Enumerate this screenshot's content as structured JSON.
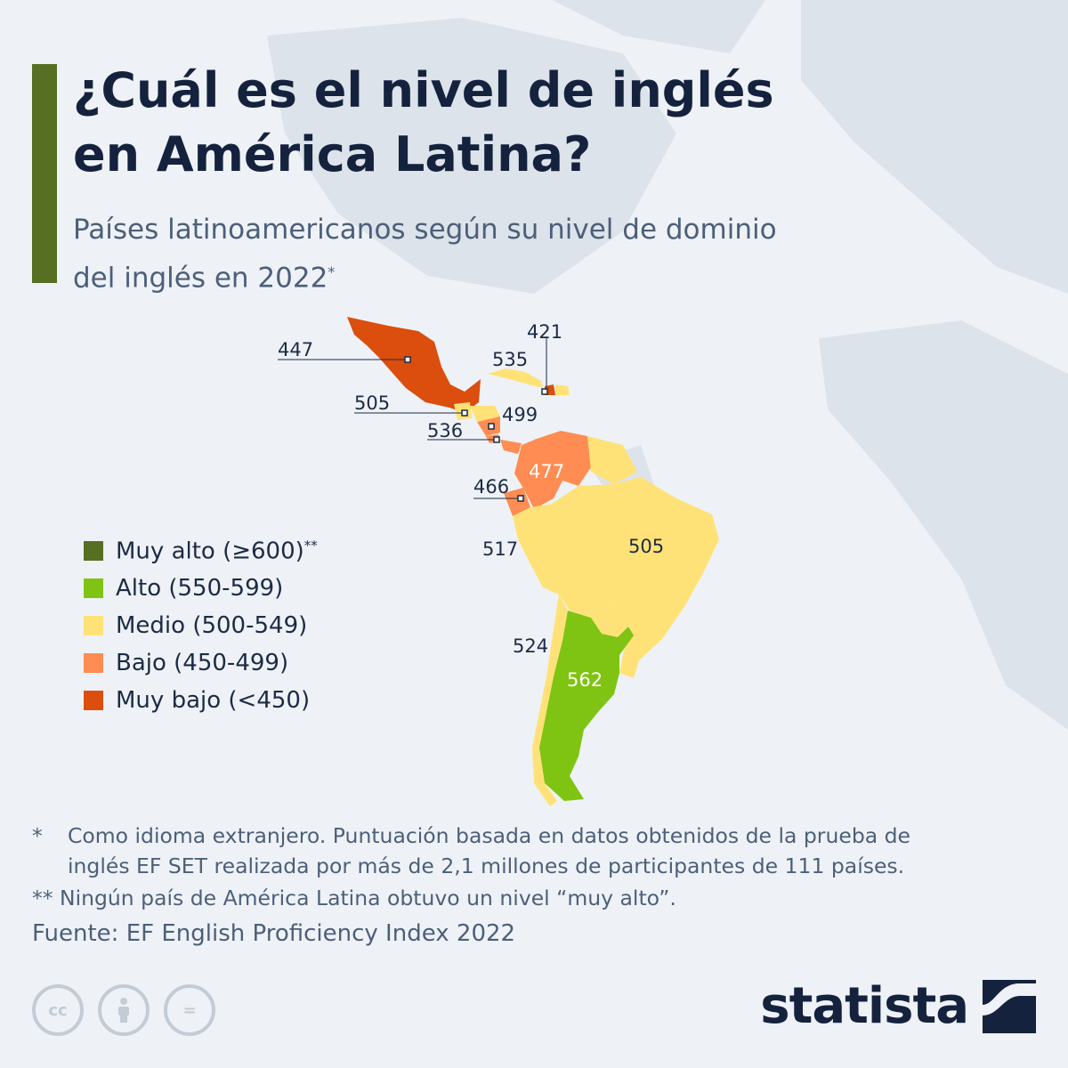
{
  "title": "¿Cuál es el nivel de inglés\nen América Latina?",
  "subtitle": "Países latinoamericanos según su nivel de dominio\ndel inglés en 2022",
  "subtitle_mark": "*",
  "colors": {
    "accent": "#566f23",
    "muy_alto": "#566f23",
    "alto": "#7fc412",
    "medio": "#ffe277",
    "bajo": "#ff8c52",
    "muy_bajo": "#db4e0d",
    "background": "#eef2f6"
  },
  "legend": [
    {
      "label": "Muy alto (≥600)",
      "mark": "**",
      "color": "#566f23"
    },
    {
      "label": "Alto (550-599)",
      "mark": "",
      "color": "#7fc412"
    },
    {
      "label": "Medio (500-549)",
      "mark": "",
      "color": "#ffe277"
    },
    {
      "label": "Bajo (450-499)",
      "mark": "",
      "color": "#ff8c52"
    },
    {
      "label": "Muy bajo (<450)",
      "mark": "",
      "color": "#db4e0d"
    }
  ],
  "chart_data": {
    "type": "choropleth",
    "regions": [
      {
        "value": 447,
        "category": "Muy bajo"
      },
      {
        "value": 535,
        "category": "Medio"
      },
      {
        "value": 421,
        "category": "Muy bajo"
      },
      {
        "value": 505,
        "category": "Medio"
      },
      {
        "value": 499,
        "category": "Bajo"
      },
      {
        "value": 536,
        "category": "Medio"
      },
      {
        "value": 477,
        "category": "Bajo"
      },
      {
        "value": 466,
        "category": "Bajo"
      },
      {
        "value": 517,
        "category": "Medio"
      },
      {
        "value": 505,
        "category": "Medio"
      },
      {
        "value": 524,
        "category": "Medio"
      },
      {
        "value": 562,
        "category": "Alto"
      }
    ]
  },
  "footnotes": [
    {
      "mark": "*",
      "text": "Como idioma extranjero. Puntuación basada en datos obtenidos de la prueba de",
      "cont": "inglés EF SET realizada por más de 2,1 millones de participantes de 111 países."
    },
    {
      "mark": "**",
      "text": "Ningún país de América Latina obtuvo un nivel “muy alto”."
    }
  ],
  "source": "Fuente: EF English Proficiency Index 2022",
  "license_icons": [
    {
      "name": "cc-icon",
      "label": "cc"
    },
    {
      "name": "by-icon",
      "label": ""
    },
    {
      "name": "nd-icon",
      "label": "="
    }
  ],
  "brand": "statista"
}
